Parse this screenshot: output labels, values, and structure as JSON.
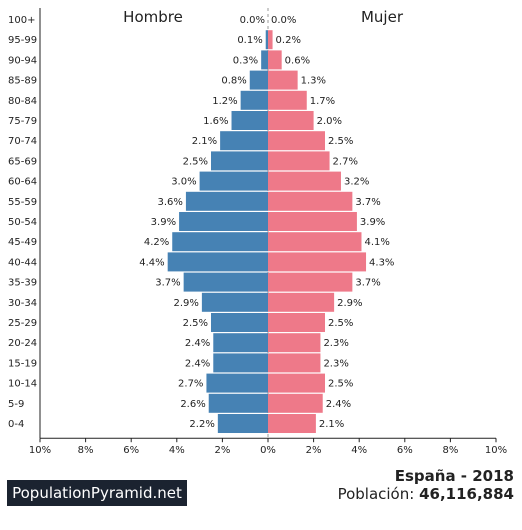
{
  "chart_data": {
    "type": "bar",
    "orientation": "horizontal-population-pyramid",
    "left_label": "Hombre",
    "right_label": "Mujer",
    "categories": [
      "100+",
      "95-99",
      "90-94",
      "85-89",
      "80-84",
      "75-79",
      "70-74",
      "65-69",
      "60-64",
      "55-59",
      "50-54",
      "45-49",
      "40-44",
      "35-39",
      "30-34",
      "25-29",
      "20-24",
      "15-19",
      "10-14",
      "5-9",
      "0-4"
    ],
    "series": [
      {
        "name": "Hombre",
        "color": "#4682b4",
        "values": [
          0.0,
          0.1,
          0.3,
          0.8,
          1.2,
          1.6,
          2.1,
          2.5,
          3.0,
          3.6,
          3.9,
          4.2,
          4.4,
          3.7,
          2.9,
          2.5,
          2.4,
          2.4,
          2.7,
          2.6,
          2.2
        ]
      },
      {
        "name": "Mujer",
        "color": "#ee7989",
        "values": [
          0.0,
          0.2,
          0.6,
          1.3,
          1.7,
          2.0,
          2.5,
          2.7,
          3.2,
          3.7,
          3.9,
          4.1,
          4.3,
          3.7,
          2.9,
          2.5,
          2.3,
          2.3,
          2.5,
          2.4,
          2.1
        ]
      }
    ],
    "value_labels": {
      "Hombre": [
        "0.0%",
        "0.1%",
        "0.3%",
        "0.8%",
        "1.2%",
        "1.6%",
        "2.1%",
        "2.5%",
        "3.0%",
        "3.6%",
        "3.9%",
        "4.2%",
        "4.4%",
        "3.7%",
        "2.9%",
        "2.5%",
        "2.4%",
        "2.4%",
        "2.7%",
        "2.6%",
        "2.2%"
      ],
      "Mujer": [
        "0.0%",
        "0.2%",
        "0.6%",
        "1.3%",
        "1.7%",
        "2.0%",
        "2.5%",
        "2.7%",
        "3.2%",
        "3.7%",
        "3.9%",
        "4.1%",
        "4.3%",
        "3.7%",
        "2.9%",
        "2.5%",
        "2.3%",
        "2.3%",
        "2.5%",
        "2.4%",
        "2.1%"
      ]
    },
    "x_range": [
      -10,
      10
    ],
    "x_ticks": [
      -10,
      -8,
      -6,
      -4,
      -2,
      0,
      2,
      4,
      6,
      8,
      10
    ],
    "x_tick_labels": [
      "10%",
      "8%",
      "6%",
      "4%",
      "2%",
      "0%",
      "2%",
      "4%",
      "6%",
      "8%",
      "10%"
    ],
    "grid": false
  },
  "footer": {
    "brand": "PopulationPyramid.net",
    "country_year": "España - 2018",
    "population_label": "Población:",
    "population_value": "46,116,884"
  }
}
